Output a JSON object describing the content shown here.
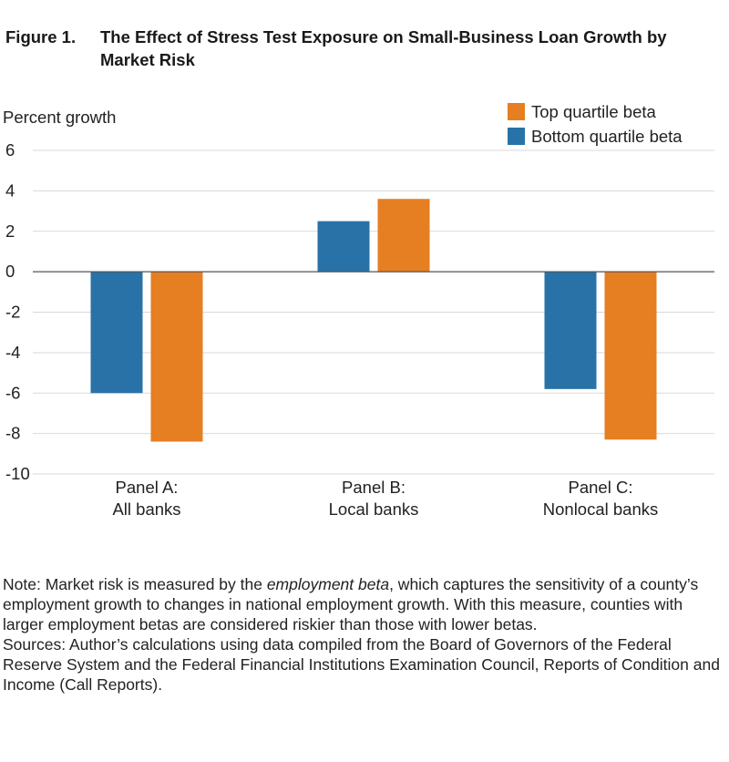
{
  "figure": {
    "number": "Figure 1.",
    "title": "The Effect of Stress Test Exposure on Small-Business Loan Growth by Market Risk"
  },
  "colors": {
    "top": "#e67e22",
    "bottom": "#2872a7",
    "grid": "#d9d9d9",
    "zero": "#555555"
  },
  "chart_data": {
    "type": "bar",
    "ylabel": "Percent growth",
    "ylim": [
      -10,
      6
    ],
    "yticks": [
      6,
      4,
      2,
      0,
      -2,
      -4,
      -6,
      -8,
      -10
    ],
    "grid": true,
    "legend_position": "top-right",
    "categories": [
      [
        "Panel A:",
        "All banks"
      ],
      [
        "Panel B:",
        "Local banks"
      ],
      [
        "Panel C:",
        "Nonlocal banks"
      ]
    ],
    "series": [
      {
        "name": "Bottom quartile beta",
        "key": "bottom",
        "values": [
          -6.0,
          2.5,
          -5.8
        ]
      },
      {
        "name": "Top quartile beta",
        "key": "top",
        "values": [
          -8.4,
          3.6,
          -8.3
        ]
      }
    ],
    "legend_order": [
      "top",
      "bottom"
    ]
  },
  "notes": {
    "note_prefix": "Note: Market risk is measured by the ",
    "note_emph": "employment beta",
    "note_suffix": ", which captures the sensitivity of a county’s employment growth to changes in national employment growth. With this measure, counties with larger employment betas are considered riskier than those with lower betas.",
    "sources": "Sources: Author’s calculations using data compiled from the Board of Governors of the Federal Reserve System and the Federal Financial Institutions Examination Council, Reports of Condition and Income (Call Reports)."
  }
}
